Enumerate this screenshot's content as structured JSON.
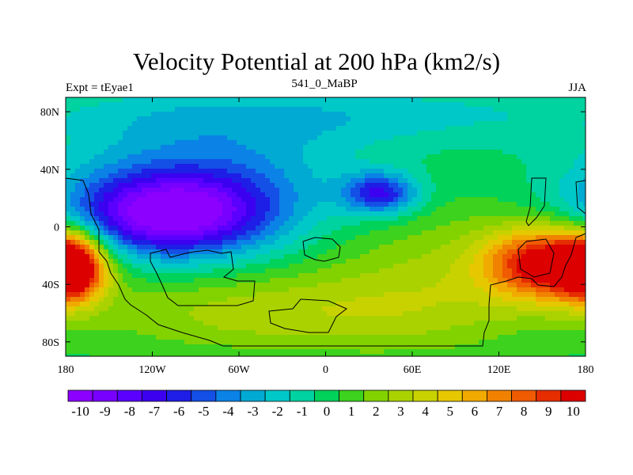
{
  "header": {
    "title": "Velocity Potential at 200 hPa (km2/s)",
    "left": "Expt = tEyae1",
    "center": "541_0_MaBP",
    "right": "JJA"
  },
  "chart_data": {
    "type": "heatmap",
    "title": "Velocity Potential at 200 hPa (km2/s)",
    "subtitle_left": "Expt = tEyae1",
    "subtitle_center": "541_0_MaBP",
    "subtitle_right": "JJA",
    "xlabel": "",
    "ylabel": "",
    "xlim": [
      -180,
      180
    ],
    "ylim": [
      -90,
      90
    ],
    "x_ticks": [
      -180,
      -120,
      -60,
      0,
      60,
      120,
      180
    ],
    "x_tick_labels": [
      "180",
      "120W",
      "60W",
      "0",
      "60E",
      "120E",
      "180"
    ],
    "y_ticks": [
      80,
      40,
      0,
      -40,
      -80
    ],
    "y_tick_labels": [
      "80N",
      "40N",
      "0",
      "40S",
      "80S"
    ],
    "colorbar": {
      "min": -10.5,
      "max": 10.5,
      "step": 0.5,
      "labels": [
        "-10",
        "-9",
        "-8",
        "-7",
        "-6",
        "-5",
        "-4",
        "-3",
        "-2",
        "-1",
        "0",
        "1",
        "2",
        "3",
        "4",
        "5",
        "6",
        "7",
        "8",
        "9",
        "10"
      ],
      "palette": [
        "#8c00ff",
        "#7800ff",
        "#5a00ff",
        "#3c00f0",
        "#1e1ee6",
        "#1450e6",
        "#0a82e6",
        "#00aad2",
        "#00c8c8",
        "#00d2a0",
        "#00d25a",
        "#3cd21e",
        "#82d200",
        "#aad200",
        "#c8d200",
        "#e6c800",
        "#f0aa00",
        "#f08200",
        "#f05a00",
        "#e62d00",
        "#dc0000"
      ]
    },
    "field_centers": [
      {
        "name": "western-hemisphere-minimum",
        "lon": -108,
        "lat": 8,
        "value": -9.5,
        "sx": 48,
        "sy": 20
      },
      {
        "name": "mid-pacific-trough",
        "lon": -80,
        "lat": 35,
        "value": -3.5,
        "sx": 70,
        "sy": 30
      },
      {
        "name": "asia-secondary-minimum",
        "lon": 38,
        "lat": 23,
        "value": -6.5,
        "sx": 18,
        "sy": 10
      },
      {
        "name": "north-polar-band",
        "lon": 0,
        "lat": 78,
        "value": -2.0,
        "sx": 150,
        "sy": 15
      },
      {
        "name": "western-pacific-maximum",
        "lon": 155,
        "lat": -25,
        "value": 10.5,
        "sx": 30,
        "sy": 18
      },
      {
        "name": "eastern-pacific-maximum",
        "lon": -175,
        "lat": -28,
        "value": 10.0,
        "sx": 15,
        "sy": 16
      },
      {
        "name": "indian-ocean-high",
        "lon": 80,
        "lat": -35,
        "value": 2.5,
        "sx": 60,
        "sy": 35
      },
      {
        "name": "southern-band",
        "lon": -40,
        "lat": -60,
        "value": 3.0,
        "sx": 90,
        "sy": 20
      }
    ]
  }
}
